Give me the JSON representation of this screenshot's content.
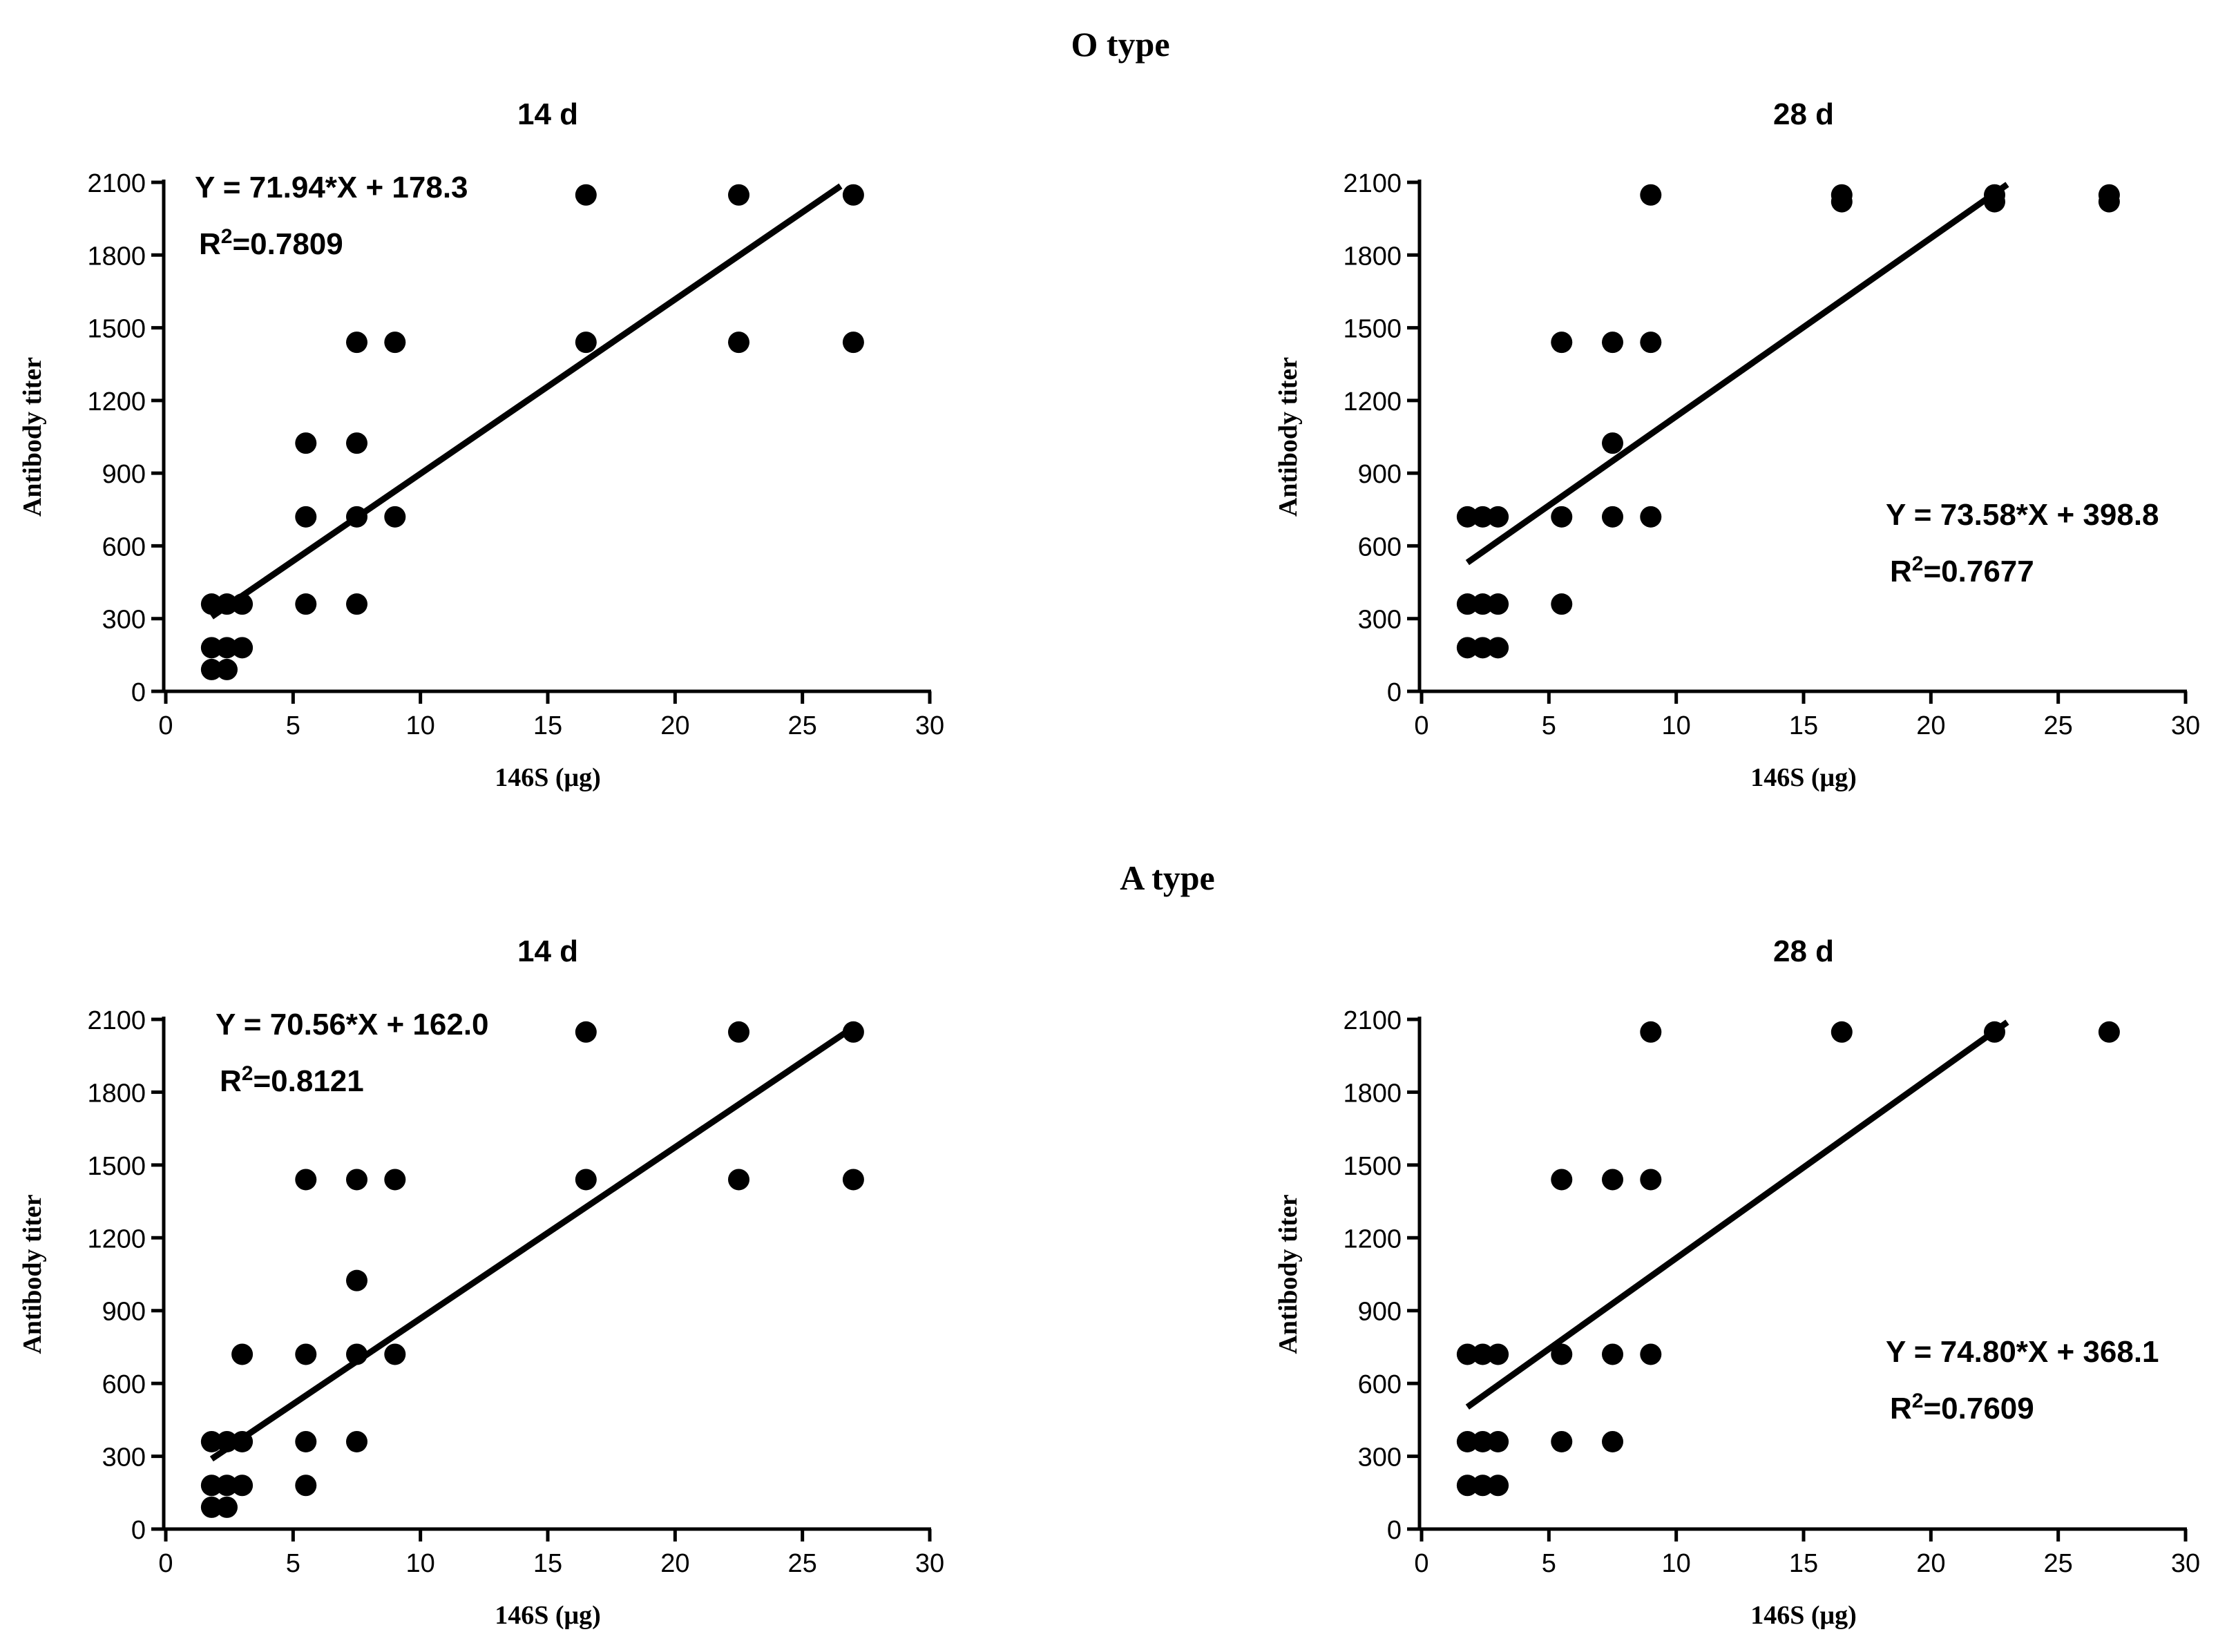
{
  "figure": {
    "section_titles": [
      "O type",
      "A type"
    ]
  },
  "chart_data": [
    {
      "type": "scatter",
      "group": "O type",
      "title": "14 d",
      "xlabel": "146S (μg)",
      "ylabel": "Antibody titer",
      "xlim": [
        0,
        30
      ],
      "ylim": [
        0,
        2100
      ],
      "xticks": [
        0,
        5,
        10,
        15,
        20,
        25,
        30
      ],
      "yticks": [
        0,
        300,
        600,
        900,
        1200,
        1500,
        1800,
        2100
      ],
      "points": [
        [
          1.8,
          360
        ],
        [
          1.8,
          180
        ],
        [
          1.8,
          90
        ],
        [
          2.4,
          360
        ],
        [
          2.4,
          180
        ],
        [
          2.4,
          90
        ],
        [
          3,
          360
        ],
        [
          3,
          180
        ],
        [
          5.5,
          1024
        ],
        [
          5.5,
          720
        ],
        [
          5.5,
          360
        ],
        [
          7.5,
          1440
        ],
        [
          7.5,
          1024
        ],
        [
          7.5,
          720
        ],
        [
          7.5,
          360
        ],
        [
          9,
          1440
        ],
        [
          9,
          720
        ],
        [
          16.5,
          2048
        ],
        [
          16.5,
          1440
        ],
        [
          22.5,
          2048
        ],
        [
          22.5,
          1440
        ],
        [
          27,
          2048
        ],
        [
          27,
          1440
        ]
      ],
      "fit": {
        "slope": 71.94,
        "intercept": 178.3,
        "x_range": [
          1.8,
          26.5
        ]
      },
      "equation": "Y = 71.94*X + 178.3",
      "r2_label": "R",
      "r2_value": "=0.7809",
      "annotation_position": "top-left"
    },
    {
      "type": "scatter",
      "group": "O type",
      "title": "28 d",
      "xlabel": "146S (μg)",
      "ylabel": "Antibody titer",
      "xlim": [
        0,
        30
      ],
      "ylim": [
        0,
        2100
      ],
      "xticks": [
        0,
        5,
        10,
        15,
        20,
        25,
        30
      ],
      "yticks": [
        0,
        300,
        600,
        900,
        1200,
        1500,
        1800,
        2100
      ],
      "points": [
        [
          1.8,
          720
        ],
        [
          1.8,
          360
        ],
        [
          1.8,
          180
        ],
        [
          2.4,
          720
        ],
        [
          2.4,
          360
        ],
        [
          2.4,
          180
        ],
        [
          3,
          720
        ],
        [
          3,
          360
        ],
        [
          3,
          180
        ],
        [
          5.5,
          1440
        ],
        [
          5.5,
          720
        ],
        [
          5.5,
          360
        ],
        [
          7.5,
          1440
        ],
        [
          7.5,
          1024
        ],
        [
          7.5,
          720
        ],
        [
          9,
          2048
        ],
        [
          9,
          1440
        ],
        [
          9,
          720
        ],
        [
          16.5,
          2048
        ],
        [
          16.5,
          2020
        ],
        [
          22.5,
          2048
        ],
        [
          22.5,
          2020
        ],
        [
          27,
          2048
        ],
        [
          27,
          2020
        ]
      ],
      "fit": {
        "slope": 73.58,
        "intercept": 398.8,
        "x_range": [
          1.8,
          23.0
        ]
      },
      "equation": "Y = 73.58*X + 398.8",
      "r2_label": "R",
      "r2_value": "=0.7677",
      "annotation_position": "middle-right"
    },
    {
      "type": "scatter",
      "group": "A type",
      "title": "14 d",
      "xlabel": "146S (μg)",
      "ylabel": "Antibody titer",
      "xlim": [
        0,
        30
      ],
      "ylim": [
        0,
        2100
      ],
      "xticks": [
        0,
        5,
        10,
        15,
        20,
        25,
        30
      ],
      "yticks": [
        0,
        300,
        600,
        900,
        1200,
        1500,
        1800,
        2100
      ],
      "points": [
        [
          1.8,
          360
        ],
        [
          1.8,
          180
        ],
        [
          1.8,
          90
        ],
        [
          2.4,
          360
        ],
        [
          2.4,
          180
        ],
        [
          2.4,
          90
        ],
        [
          3,
          720
        ],
        [
          3,
          360
        ],
        [
          3,
          180
        ],
        [
          5.5,
          1440
        ],
        [
          5.5,
          720
        ],
        [
          5.5,
          360
        ],
        [
          5.5,
          180
        ],
        [
          7.5,
          1440
        ],
        [
          7.5,
          1024
        ],
        [
          7.5,
          720
        ],
        [
          7.5,
          360
        ],
        [
          9,
          1440
        ],
        [
          9,
          720
        ],
        [
          16.5,
          2048
        ],
        [
          16.5,
          1440
        ],
        [
          22.5,
          2048
        ],
        [
          22.5,
          1440
        ],
        [
          27,
          2048
        ],
        [
          27,
          1440
        ]
      ],
      "fit": {
        "slope": 70.56,
        "intercept": 162.0,
        "x_range": [
          1.8,
          27.0
        ]
      },
      "equation": "Y = 70.56*X + 162.0",
      "r2_label": "R",
      "r2_value": "=0.8121",
      "annotation_position": "top-left"
    },
    {
      "type": "scatter",
      "group": "A type",
      "title": "28 d",
      "xlabel": "146S (μg)",
      "ylabel": "Antibody titer",
      "xlim": [
        0,
        30
      ],
      "ylim": [
        0,
        2100
      ],
      "xticks": [
        0,
        5,
        10,
        15,
        20,
        25,
        30
      ],
      "yticks": [
        0,
        300,
        600,
        900,
        1200,
        1500,
        1800,
        2100
      ],
      "points": [
        [
          1.8,
          720
        ],
        [
          1.8,
          360
        ],
        [
          1.8,
          180
        ],
        [
          2.4,
          720
        ],
        [
          2.4,
          360
        ],
        [
          2.4,
          180
        ],
        [
          3,
          720
        ],
        [
          3,
          360
        ],
        [
          3,
          180
        ],
        [
          5.5,
          1440
        ],
        [
          5.5,
          720
        ],
        [
          5.5,
          360
        ],
        [
          7.5,
          1440
        ],
        [
          7.5,
          720
        ],
        [
          7.5,
          360
        ],
        [
          9,
          2048
        ],
        [
          9,
          1440
        ],
        [
          9,
          720
        ],
        [
          16.5,
          2048
        ],
        [
          22.5,
          2048
        ],
        [
          27,
          2048
        ]
      ],
      "fit": {
        "slope": 74.8,
        "intercept": 368.1,
        "x_range": [
          1.8,
          23.0
        ]
      },
      "equation": "Y = 74.80*X + 368.1",
      "r2_label": "R",
      "r2_value": "=0.7609",
      "annotation_position": "middle-right"
    }
  ]
}
